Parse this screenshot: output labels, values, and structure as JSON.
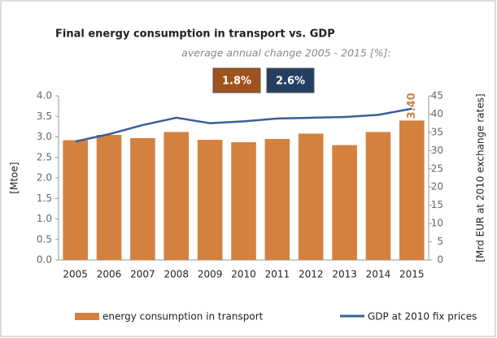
{
  "chart_data": {
    "type": "bar_line",
    "title": "Final energy consumption in transport vs. GDP",
    "subtitle": "average annual change 2005 - 2015 [%]:",
    "annotations": [
      {
        "text": "1.8%",
        "color": "#a0521e"
      },
      {
        "text": "2.6%",
        "color": "#243f60"
      }
    ],
    "categories": [
      "2005",
      "2006",
      "2007",
      "2008",
      "2009",
      "2010",
      "2011",
      "2012",
      "2013",
      "2014",
      "2015"
    ],
    "series": [
      {
        "name": "energy consumption in transport",
        "color": "#d4813f",
        "type": "bar",
        "values": [
          2.92,
          3.05,
          2.97,
          3.12,
          2.93,
          2.87,
          2.95,
          3.08,
          2.8,
          3.12,
          3.4
        ],
        "value_labels": [
          null,
          null,
          null,
          null,
          null,
          null,
          null,
          null,
          null,
          null,
          "3.40"
        ]
      },
      {
        "name": "GDP at 2010 fix prices",
        "color": "#3a5f9a",
        "type": "line",
        "axis": "y2",
        "values": [
          32.5,
          34.5,
          37,
          39,
          37.5,
          38,
          38.8,
          39,
          39.2,
          39.8,
          41.5
        ]
      }
    ],
    "ylabel": "[Mtoe]",
    "y2label": "[Mrd EUR at 2010 exchange rates]",
    "ylim": [
      0,
      4
    ],
    "yticks": [
      {
        "value": 0,
        "label": "0.0"
      },
      0.5,
      {
        "value": 1,
        "label": "1.0"
      },
      1.5,
      {
        "value": 2,
        "label": "2.0"
      },
      2.5,
      {
        "value": 3,
        "label": "3.0"
      },
      3.5,
      {
        "value": 4,
        "label": "4.0"
      }
    ],
    "y2lim": [
      0,
      45
    ],
    "y2ticks": [
      0,
      5,
      10,
      15,
      20,
      25,
      30,
      35,
      40,
      45
    ],
    "grid": false,
    "legend": "bottom"
  }
}
